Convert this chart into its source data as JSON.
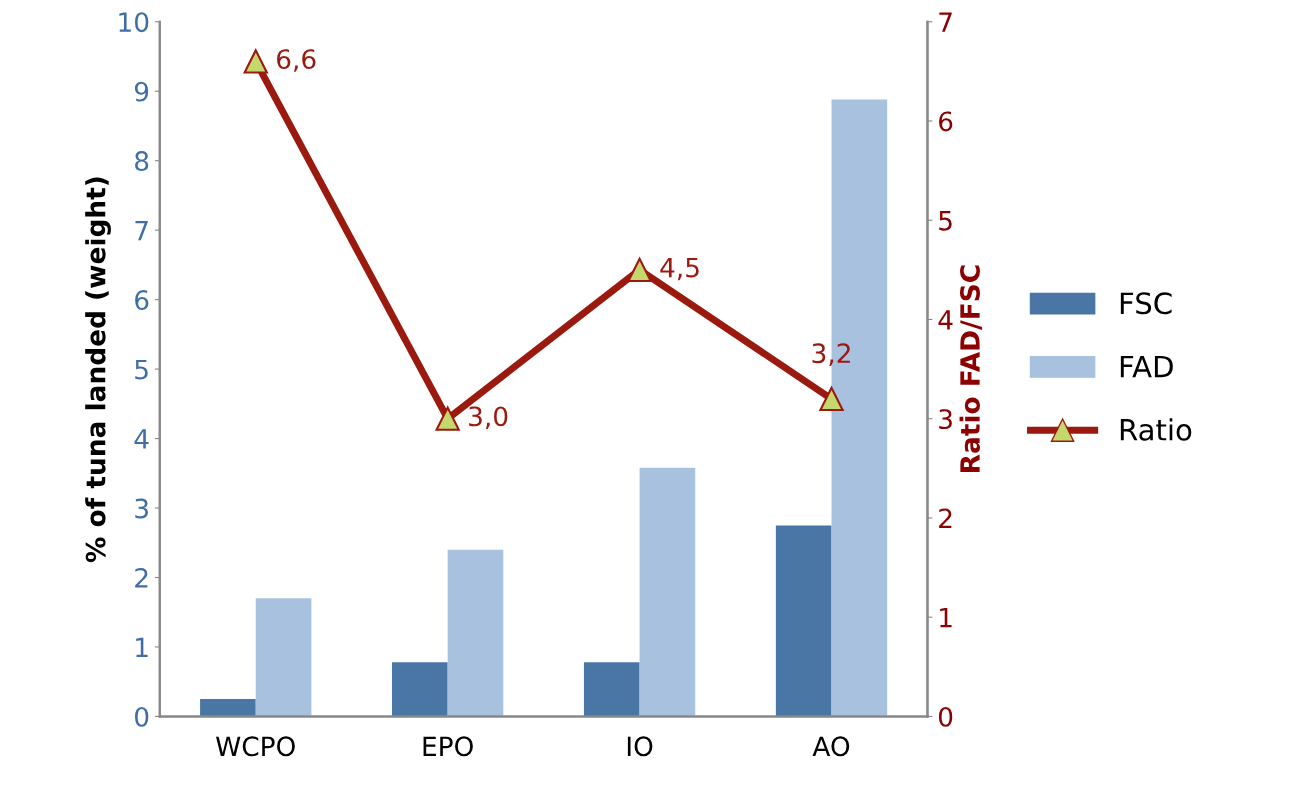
{
  "chart_data": {
    "type": "bar",
    "ylabel": "% of tuna landed (weight)",
    "y2label": "Ratio FAD/FSC",
    "categories": [
      "WCPO",
      "EPO",
      "IO",
      "AO"
    ],
    "series": [
      {
        "name": "FSC",
        "color": "#4a76a6",
        "values": [
          0.25,
          0.78,
          0.78,
          2.75
        ]
      },
      {
        "name": "FAD",
        "color": "#a8c1de",
        "values": [
          1.7,
          2.4,
          3.58,
          8.88
        ]
      },
      {
        "name": "Ratio",
        "type": "line",
        "axis": "y2",
        "color": "#9b1a10",
        "marker": "triangle",
        "line_style": "solid",
        "values": [
          6.6,
          3.0,
          4.5,
          3.2
        ],
        "value_labels": [
          "6,6",
          "3,0",
          "4,5",
          "3,2"
        ]
      }
    ],
    "ylim": [
      0,
      10
    ],
    "yticks": [
      0,
      1,
      2,
      3,
      4,
      5,
      6,
      7,
      8,
      9,
      10
    ],
    "y2lim": [
      0,
      7
    ],
    "y2ticks": [
      0,
      1,
      2,
      3,
      4,
      5,
      6,
      7
    ],
    "grid": false,
    "legend": "right"
  }
}
